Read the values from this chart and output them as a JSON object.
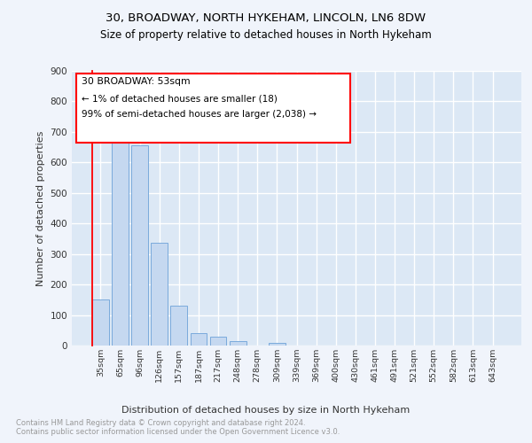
{
  "title1": "30, BROADWAY, NORTH HYKEHAM, LINCOLN, LN6 8DW",
  "title2": "Size of property relative to detached houses in North Hykeham",
  "xlabel": "Distribution of detached houses by size in North Hykeham",
  "ylabel": "Number of detached properties",
  "footnote": "Contains HM Land Registry data © Crown copyright and database right 2024.\nContains public sector information licensed under the Open Government Licence v3.0.",
  "categories": [
    "35sqm",
    "65sqm",
    "96sqm",
    "126sqm",
    "157sqm",
    "187sqm",
    "217sqm",
    "248sqm",
    "278sqm",
    "309sqm",
    "339sqm",
    "369sqm",
    "400sqm",
    "430sqm",
    "461sqm",
    "491sqm",
    "521sqm",
    "552sqm",
    "582sqm",
    "613sqm",
    "643sqm"
  ],
  "values": [
    152,
    714,
    655,
    338,
    130,
    42,
    30,
    14,
    0,
    10,
    0,
    0,
    0,
    0,
    0,
    0,
    0,
    0,
    0,
    0,
    0
  ],
  "bar_color": "#c5d8f0",
  "bar_edge_color": "#7aaadc",
  "annotation_line1": "30 BROADWAY: 53sqm",
  "annotation_line2": "← 1% of detached houses are smaller (18)",
  "annotation_line3": "99% of semi-detached houses are larger (2,038) →",
  "ylim": [
    0,
    900
  ],
  "yticks": [
    0,
    100,
    200,
    300,
    400,
    500,
    600,
    700,
    800,
    900
  ],
  "fig_bg_color": "#f0f4fb",
  "plot_bg_color": "#dce8f5",
  "grid_color": "#ffffff",
  "red_line_x": -0.42
}
